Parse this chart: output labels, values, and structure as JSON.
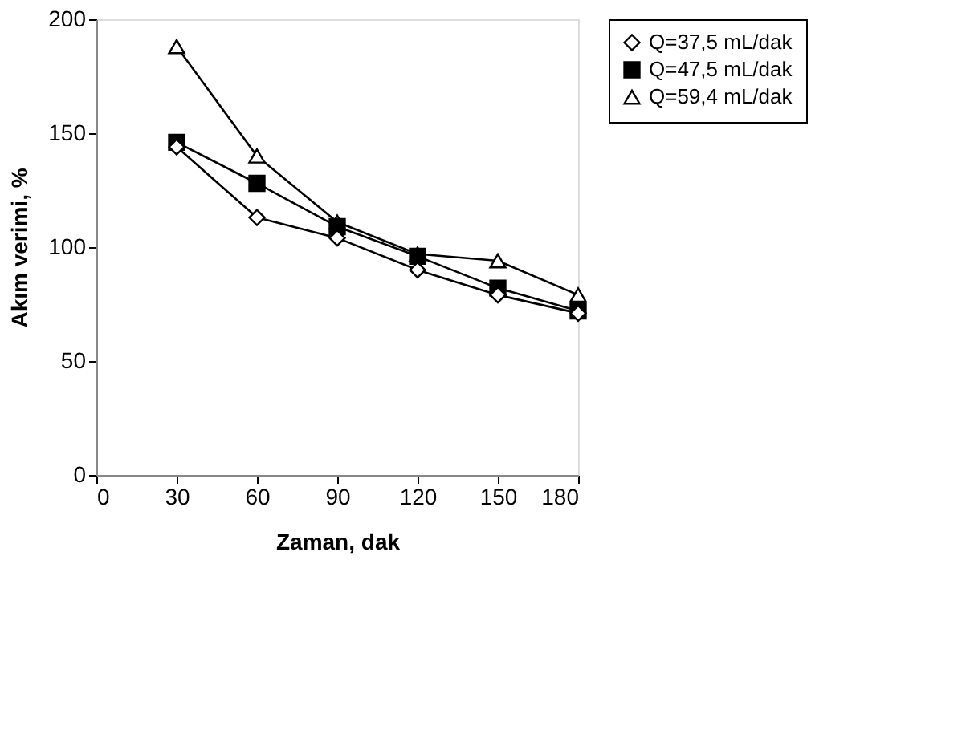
{
  "chart_data": {
    "type": "line",
    "xlabel": "Zaman, dak",
    "ylabel": "Akım verimi, %",
    "x": [
      30,
      60,
      90,
      120,
      150,
      180
    ],
    "series": [
      {
        "name": "Q=37,5 mL/dak",
        "color": "#000000",
        "marker": "diamond",
        "values": [
          144,
          113,
          104,
          90,
          79,
          71
        ]
      },
      {
        "name": "Q=47,5 mL/dak",
        "color": "#000000",
        "marker": "square",
        "values": [
          146,
          128,
          109,
          96,
          82,
          72
        ]
      },
      {
        "name": "Q=59,4 mL/dak",
        "color": "#000000",
        "marker": "triangle",
        "values": [
          188,
          140,
          111,
          97,
          94,
          79
        ]
      }
    ],
    "xlim": [
      0,
      180
    ],
    "xticks": [
      0,
      30,
      60,
      90,
      120,
      150,
      180
    ],
    "ylim": [
      0,
      200
    ],
    "yticks": [
      0,
      50,
      100,
      150,
      200
    ],
    "grid": false,
    "legend": "right",
    "line_style": "solid"
  }
}
